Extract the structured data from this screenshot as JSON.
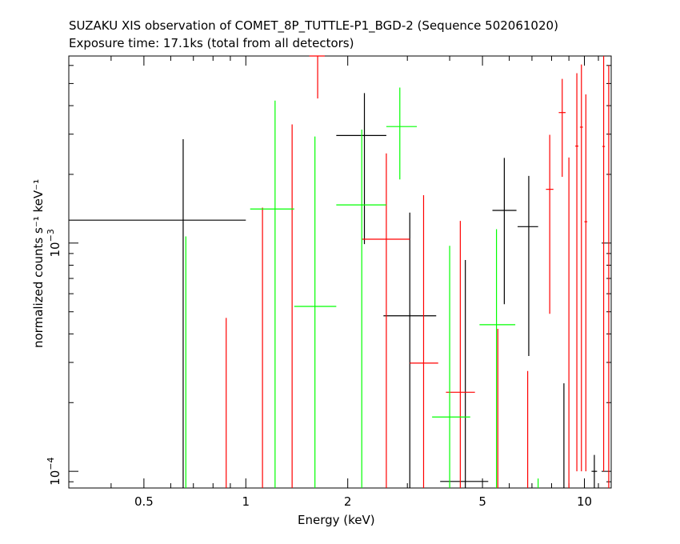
{
  "chart_data": {
    "type": "scatter",
    "title": "SUZAKU XIS observation of COMET_8P_TUTTLE-P1_BGD-2 (Sequence 502061020)",
    "subtitle": "Exposure time: 17.1ks (total from all detectors)",
    "xlabel": "Energy (keV)",
    "ylabel": "normalized counts s⁻¹ keV⁻¹",
    "xscale": "log",
    "yscale": "log",
    "xlim": [
      0.3,
      12.0
    ],
    "ylim": [
      8.452e-05,
      0.0066
    ],
    "x_tick_labels": [
      {
        "value": 0.5,
        "text": "0.5"
      },
      {
        "value": 1,
        "text": "1"
      },
      {
        "value": 2,
        "text": "2"
      },
      {
        "value": 5,
        "text": "5"
      },
      {
        "value": 10,
        "text": "10"
      }
    ],
    "y_tick_labels": [
      {
        "value": 0.0001,
        "base": "10",
        "exp": "−4"
      },
      {
        "value": 0.001,
        "base": "10",
        "exp": "−3"
      }
    ],
    "grid": false,
    "legend": "none",
    "series": [
      {
        "color": "#000000",
        "points": [
          {
            "x": 0.653,
            "xlo": 0.3,
            "xhi": 1.0,
            "y": 0.00126,
            "ylo": 8.452e-05,
            "yhi": 0.00285
          },
          {
            "x": 2.24,
            "xlo": 1.85,
            "xhi": 2.6,
            "y": 0.00296,
            "ylo": 0.00099,
            "yhi": 0.00454
          },
          {
            "x": 3.05,
            "xlo": 2.55,
            "xhi": 3.65,
            "y": 0.00048,
            "ylo": 8.452e-05,
            "yhi": 0.00136
          },
          {
            "x": 4.45,
            "xlo": 3.75,
            "xhi": 5.2,
            "y": 9.03e-05,
            "ylo": 8.452e-05,
            "yhi": 0.000843
          },
          {
            "x": 5.8,
            "xlo": 5.35,
            "xhi": 6.3,
            "y": 0.00139,
            "ylo": 0.00054,
            "yhi": 0.00236
          },
          {
            "x": 6.85,
            "xlo": 6.35,
            "xhi": 7.3,
            "y": 0.00118,
            "ylo": 0.00032,
            "yhi": 0.00197
          },
          {
            "x": 8.7,
            "xlo": 8.7,
            "xhi": 8.7,
            "y": 9e-05,
            "ylo": 8.452e-05,
            "yhi": 0.000243
          },
          {
            "x": 10.7,
            "xlo": 10.5,
            "xhi": 10.9,
            "y": 0.0001,
            "ylo": 8.452e-05,
            "yhi": 0.000118
          }
        ]
      },
      {
        "color": "#ff0000",
        "points": [
          {
            "x": 0.875,
            "xlo": 0.875,
            "xhi": 0.875,
            "y": 0.0001,
            "ylo": 8.452e-05,
            "yhi": 0.00047
          },
          {
            "x": 1.12,
            "xlo": 1.12,
            "xhi": 1.12,
            "y": 0.0001,
            "ylo": 8.452e-05,
            "yhi": 0.00143
          },
          {
            "x": 1.37,
            "xlo": 1.37,
            "xhi": 1.37,
            "y": 0.0001,
            "ylo": 8.452e-05,
            "yhi": 0.00331
          },
          {
            "x": 1.63,
            "xlo": 1.54,
            "xhi": 1.71,
            "y": 0.0066,
            "ylo": 0.0043,
            "yhi": 0.0066
          },
          {
            "x": 2.6,
            "xlo": 2.2,
            "xhi": 3.05,
            "y": 0.00104,
            "ylo": 8.452e-05,
            "yhi": 0.00247
          },
          {
            "x": 3.35,
            "xlo": 3.05,
            "xhi": 3.7,
            "y": 0.000298,
            "ylo": 8.452e-05,
            "yhi": 0.00162
          },
          {
            "x": 4.3,
            "xlo": 3.9,
            "xhi": 4.75,
            "y": 0.000222,
            "ylo": 8.452e-05,
            "yhi": 0.00125
          },
          {
            "x": 5.55,
            "xlo": 5.55,
            "xhi": 5.55,
            "y": 0.0001,
            "ylo": 8.452e-05,
            "yhi": 0.000421
          },
          {
            "x": 6.8,
            "xlo": 6.8,
            "xhi": 6.8,
            "y": 0.0001,
            "ylo": 8.452e-05,
            "yhi": 0.000275
          },
          {
            "x": 7.9,
            "xlo": 7.7,
            "xhi": 8.1,
            "y": 0.00172,
            "ylo": 0.00049,
            "yhi": 0.00298
          },
          {
            "x": 8.6,
            "xlo": 8.4,
            "xhi": 8.8,
            "y": 0.00373,
            "ylo": 0.00195,
            "yhi": 0.00524
          },
          {
            "x": 9.0,
            "xlo": 9.0,
            "xhi": 9.0,
            "y": 0.0001,
            "ylo": 8.452e-05,
            "yhi": 0.00237
          },
          {
            "x": 9.5,
            "xlo": 9.4,
            "xhi": 9.6,
            "y": 0.00266,
            "ylo": 0.0001,
            "yhi": 0.00555
          },
          {
            "x": 9.8,
            "xlo": 9.7,
            "xhi": 9.9,
            "y": 0.00322,
            "ylo": 0.0001,
            "yhi": 0.00606
          },
          {
            "x": 10.1,
            "xlo": 10.0,
            "xhi": 10.2,
            "y": 0.00124,
            "ylo": 0.0001,
            "yhi": 0.00448
          },
          {
            "x": 11.4,
            "xlo": 11.3,
            "xhi": 11.5,
            "y": 0.00265,
            "ylo": 0.0001,
            "yhi": 0.0066
          },
          {
            "x": 11.8,
            "xlo": 11.8,
            "xhi": 11.8,
            "y": 0.0001,
            "ylo": 8.452e-05,
            "yhi": 0.006
          }
        ]
      },
      {
        "color": "#00ff00",
        "points": [
          {
            "x": 0.665,
            "xlo": 0.665,
            "xhi": 0.665,
            "y": 0.0001,
            "ylo": 8.452e-05,
            "yhi": 0.00107
          },
          {
            "x": 1.22,
            "xlo": 1.03,
            "xhi": 1.39,
            "y": 0.00141,
            "ylo": 8.452e-05,
            "yhi": 0.00421
          },
          {
            "x": 1.6,
            "xlo": 1.39,
            "xhi": 1.85,
            "y": 0.000528,
            "ylo": 8.452e-05,
            "yhi": 0.00293
          },
          {
            "x": 2.2,
            "xlo": 1.85,
            "xhi": 2.6,
            "y": 0.00147,
            "ylo": 8.452e-05,
            "yhi": 0.00314
          },
          {
            "x": 2.85,
            "xlo": 2.6,
            "xhi": 3.2,
            "y": 0.00324,
            "ylo": 0.0019,
            "yhi": 0.0048
          },
          {
            "x": 4.0,
            "xlo": 3.55,
            "xhi": 4.6,
            "y": 0.000173,
            "ylo": 8.452e-05,
            "yhi": 0.000973
          },
          {
            "x": 5.5,
            "xlo": 4.9,
            "xhi": 6.25,
            "y": 0.000439,
            "ylo": 8.452e-05,
            "yhi": 0.00115
          },
          {
            "x": 7.3,
            "xlo": 7.3,
            "xhi": 7.3,
            "y": 0.0001,
            "ylo": 8.452e-05,
            "yhi": 9.3e-05
          }
        ]
      }
    ]
  }
}
